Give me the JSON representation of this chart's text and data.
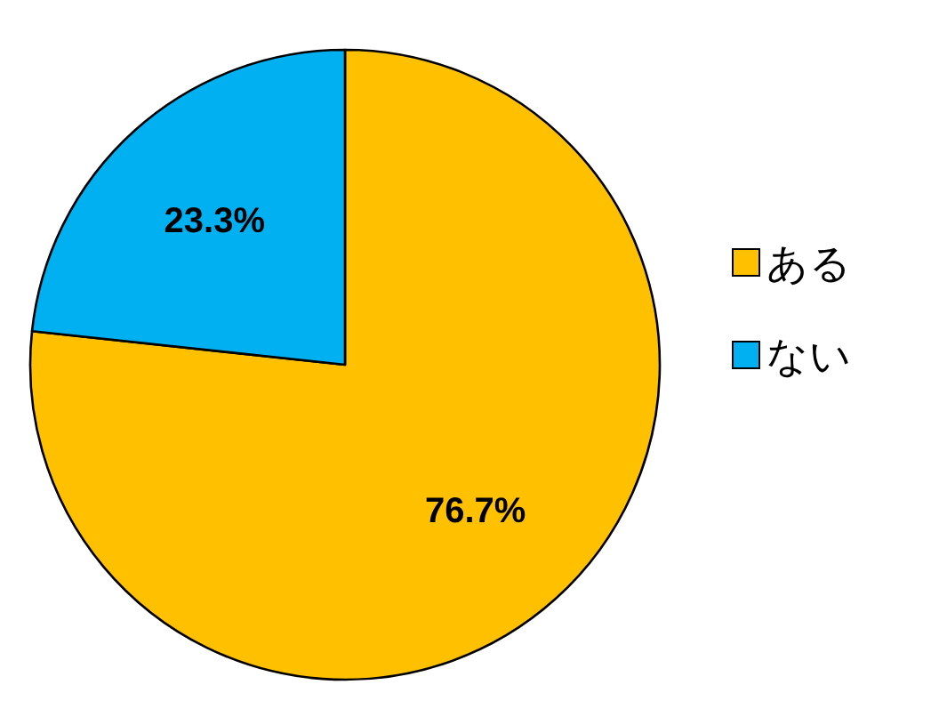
{
  "chart_data": {
    "type": "pie",
    "categories": [
      "ある",
      "ない"
    ],
    "values": [
      76.7,
      23.3
    ],
    "colors": [
      "#ffc000",
      "#00b0f0"
    ],
    "value_labels": [
      "76.7%",
      "23.3%"
    ],
    "legend": "right"
  }
}
